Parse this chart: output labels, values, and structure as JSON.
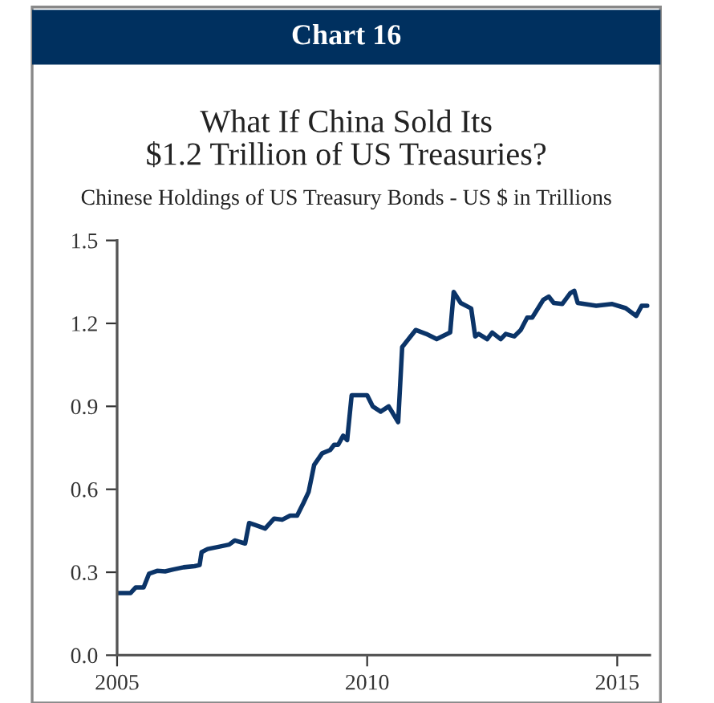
{
  "chart_data": {
    "type": "line",
    "title": "What If China Sold Its\n$1.2 Trillion of US Treasuries?",
    "subtitle": "Chinese Holdings of US Treasury Bonds - US $ in Trillions",
    "annotations": [
      "Chart 16"
    ],
    "series": [
      {
        "color": "#0b3468",
        "x": [
          2005.0,
          2005.27,
          2005.37,
          2005.53,
          2005.64,
          2005.8,
          2005.96,
          2006.12,
          2006.33,
          2006.55,
          2006.65,
          2006.69,
          2006.81,
          2007.03,
          2007.24,
          2007.35,
          2007.56,
          2007.64,
          2007.77,
          2007.96,
          2008.14,
          2008.3,
          2008.46,
          2008.6,
          2008.73,
          2008.83,
          2008.94,
          2009.1,
          2009.26,
          2009.34,
          2009.42,
          2009.52,
          2009.6,
          2009.69,
          2010.0,
          2010.11,
          2010.27,
          2010.43,
          2010.62,
          2010.7,
          2010.97,
          2011.18,
          2011.39,
          2011.66,
          2011.73,
          2011.87,
          2012.08,
          2012.16,
          2012.23,
          2012.4,
          2012.5,
          2012.67,
          2012.77,
          2012.94,
          2013.07,
          2013.2,
          2013.3,
          2013.52,
          2013.63,
          2013.73,
          2013.9,
          2014.06,
          2014.14,
          2014.21,
          2014.58,
          2014.9,
          2015.17,
          2015.38,
          2015.49,
          2015.6
        ],
        "values": [
          0.225,
          0.225,
          0.245,
          0.245,
          0.295,
          0.305,
          0.303,
          0.31,
          0.318,
          0.322,
          0.326,
          0.373,
          0.384,
          0.392,
          0.4,
          0.415,
          0.404,
          0.478,
          0.47,
          0.458,
          0.494,
          0.49,
          0.505,
          0.505,
          0.552,
          0.591,
          0.688,
          0.73,
          0.742,
          0.761,
          0.761,
          0.794,
          0.778,
          0.94,
          0.94,
          0.9,
          0.881,
          0.9,
          0.843,
          1.114,
          1.176,
          1.162,
          1.143,
          1.167,
          1.314,
          1.274,
          1.254,
          1.153,
          1.162,
          1.143,
          1.167,
          1.143,
          1.162,
          1.153,
          1.176,
          1.221,
          1.221,
          1.285,
          1.297,
          1.274,
          1.27,
          1.309,
          1.318,
          1.274,
          1.264,
          1.27,
          1.255,
          1.227,
          1.264,
          1.264
        ]
      }
    ],
    "xlim": [
      2005,
      2015.65
    ],
    "xticks": [
      2005,
      2010,
      2015
    ],
    "ylim": [
      0,
      1.5
    ],
    "yticks": [
      {
        "value": 0,
        "label": "0.0"
      },
      0.3,
      0.6,
      0.9,
      1.2,
      1.5
    ],
    "grid": false
  }
}
